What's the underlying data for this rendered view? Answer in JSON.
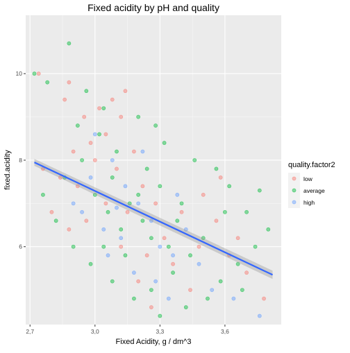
{
  "chart_data": {
    "type": "scatter",
    "title": "Fixed acidity by pH and quality",
    "xlabel": "Fixed Acidity, g / dm^3",
    "ylabel": "fixed.acidity",
    "xlim": [
      2.68,
      3.86
    ],
    "ylim": [
      4.2,
      11.35
    ],
    "x_ticks": [
      2.7,
      3.0,
      3.3,
      3.6
    ],
    "x_tick_labels": [
      "2,7",
      "3,0",
      "3,3",
      "3,6"
    ],
    "y_ticks": [
      6,
      8,
      10
    ],
    "y_tick_labels": [
      "6",
      "8",
      "10"
    ],
    "grid": true,
    "legend": {
      "title": "quality.factor2",
      "placement": "right",
      "items": [
        {
          "name": "low",
          "color": "#F8766D"
        },
        {
          "name": "average",
          "color": "#00BA38"
        },
        {
          "name": "high",
          "color": "#619CFF"
        }
      ]
    },
    "trend_line": {
      "method": "lm",
      "color": "#3366FF",
      "points": [
        {
          "x": 2.72,
          "y": 7.95
        },
        {
          "x": 3.82,
          "y": 5.35
        }
      ]
    },
    "series": [
      {
        "name": "low",
        "color": "#F8766D",
        "points": [
          {
            "x": 2.74,
            "y": 10.0
          },
          {
            "x": 2.86,
            "y": 9.4
          },
          {
            "x": 2.88,
            "y": 9.8
          },
          {
            "x": 2.95,
            "y": 9.0
          },
          {
            "x": 3.02,
            "y": 9.2
          },
          {
            "x": 3.08,
            "y": 9.4
          },
          {
            "x": 3.12,
            "y": 9.0
          },
          {
            "x": 3.05,
            "y": 8.6
          },
          {
            "x": 2.98,
            "y": 8.4
          },
          {
            "x": 2.9,
            "y": 8.2
          },
          {
            "x": 2.84,
            "y": 7.6
          },
          {
            "x": 2.92,
            "y": 7.4
          },
          {
            "x": 3.0,
            "y": 8.0
          },
          {
            "x": 3.1,
            "y": 7.8
          },
          {
            "x": 3.18,
            "y": 8.2
          },
          {
            "x": 3.22,
            "y": 7.4
          },
          {
            "x": 3.28,
            "y": 7.0
          },
          {
            "x": 3.15,
            "y": 6.8
          },
          {
            "x": 3.05,
            "y": 7.0
          },
          {
            "x": 2.96,
            "y": 6.6
          },
          {
            "x": 2.88,
            "y": 6.4
          },
          {
            "x": 3.32,
            "y": 6.2
          },
          {
            "x": 3.4,
            "y": 6.8
          },
          {
            "x": 3.48,
            "y": 6.0
          },
          {
            "x": 3.56,
            "y": 6.6
          },
          {
            "x": 3.62,
            "y": 5.8
          },
          {
            "x": 3.7,
            "y": 5.4
          },
          {
            "x": 3.36,
            "y": 5.6
          },
          {
            "x": 3.24,
            "y": 5.8
          },
          {
            "x": 3.12,
            "y": 6.0
          },
          {
            "x": 3.2,
            "y": 5.2
          },
          {
            "x": 3.44,
            "y": 5.0
          },
          {
            "x": 3.78,
            "y": 4.8
          },
          {
            "x": 2.8,
            "y": 6.8
          },
          {
            "x": 3.58,
            "y": 7.6
          },
          {
            "x": 3.26,
            "y": 4.6
          },
          {
            "x": 3.14,
            "y": 9.6
          },
          {
            "x": 2.76,
            "y": 7.8
          },
          {
            "x": 3.5,
            "y": 7.2
          },
          {
            "x": 3.66,
            "y": 6.2
          }
        ]
      },
      {
        "name": "average",
        "color": "#00BA38",
        "points": [
          {
            "x": 2.88,
            "y": 10.7
          },
          {
            "x": 2.72,
            "y": 10.0
          },
          {
            "x": 2.78,
            "y": 9.8
          },
          {
            "x": 2.96,
            "y": 9.6
          },
          {
            "x": 3.04,
            "y": 9.2
          },
          {
            "x": 3.2,
            "y": 9.0
          },
          {
            "x": 3.28,
            "y": 8.8
          },
          {
            "x": 3.32,
            "y": 8.4
          },
          {
            "x": 3.46,
            "y": 8.0
          },
          {
            "x": 3.56,
            "y": 7.8
          },
          {
            "x": 3.62,
            "y": 7.4
          },
          {
            "x": 3.76,
            "y": 7.3
          },
          {
            "x": 3.7,
            "y": 6.8
          },
          {
            "x": 3.8,
            "y": 6.4
          },
          {
            "x": 3.74,
            "y": 6.0
          },
          {
            "x": 3.66,
            "y": 5.6
          },
          {
            "x": 3.58,
            "y": 5.2
          },
          {
            "x": 3.52,
            "y": 4.8
          },
          {
            "x": 3.42,
            "y": 4.6
          },
          {
            "x": 3.3,
            "y": 4.4
          },
          {
            "x": 3.18,
            "y": 4.8
          },
          {
            "x": 3.08,
            "y": 5.2
          },
          {
            "x": 2.98,
            "y": 5.6
          },
          {
            "x": 2.9,
            "y": 6.0
          },
          {
            "x": 2.82,
            "y": 6.6
          },
          {
            "x": 2.76,
            "y": 7.2
          },
          {
            "x": 2.86,
            "y": 7.6
          },
          {
            "x": 2.94,
            "y": 8.0
          },
          {
            "x": 3.0,
            "y": 7.2
          },
          {
            "x": 3.06,
            "y": 6.8
          },
          {
            "x": 3.12,
            "y": 6.4
          },
          {
            "x": 3.16,
            "y": 7.0
          },
          {
            "x": 3.22,
            "y": 6.6
          },
          {
            "x": 3.26,
            "y": 6.2
          },
          {
            "x": 3.34,
            "y": 6.0
          },
          {
            "x": 3.38,
            "y": 6.6
          },
          {
            "x": 3.44,
            "y": 5.8
          },
          {
            "x": 3.5,
            "y": 6.2
          },
          {
            "x": 3.4,
            "y": 7.0
          },
          {
            "x": 3.3,
            "y": 7.4
          },
          {
            "x": 3.24,
            "y": 7.8
          },
          {
            "x": 3.1,
            "y": 8.2
          },
          {
            "x": 3.02,
            "y": 8.6
          },
          {
            "x": 2.92,
            "y": 8.8
          },
          {
            "x": 3.14,
            "y": 5.8
          },
          {
            "x": 3.04,
            "y": 6.0
          },
          {
            "x": 3.36,
            "y": 5.4
          },
          {
            "x": 3.26,
            "y": 5.0
          },
          {
            "x": 3.6,
            "y": 6.8
          },
          {
            "x": 3.68,
            "y": 5.0
          },
          {
            "x": 3.2,
            "y": 7.2
          },
          {
            "x": 3.08,
            "y": 7.6
          }
        ]
      },
      {
        "name": "high",
        "color": "#619CFF",
        "points": [
          {
            "x": 3.0,
            "y": 8.6
          },
          {
            "x": 3.08,
            "y": 8.0
          },
          {
            "x": 2.98,
            "y": 7.6
          },
          {
            "x": 3.14,
            "y": 7.4
          },
          {
            "x": 3.2,
            "y": 7.0
          },
          {
            "x": 3.26,
            "y": 6.6
          },
          {
            "x": 3.04,
            "y": 6.4
          },
          {
            "x": 3.12,
            "y": 6.2
          },
          {
            "x": 3.3,
            "y": 6.0
          },
          {
            "x": 3.36,
            "y": 5.8
          },
          {
            "x": 3.42,
            "y": 6.4
          },
          {
            "x": 3.48,
            "y": 5.6
          },
          {
            "x": 3.18,
            "y": 5.4
          },
          {
            "x": 3.28,
            "y": 5.2
          },
          {
            "x": 3.54,
            "y": 5.0
          },
          {
            "x": 3.64,
            "y": 4.8
          },
          {
            "x": 2.94,
            "y": 6.8
          },
          {
            "x": 3.22,
            "y": 8.2
          },
          {
            "x": 3.38,
            "y": 7.2
          },
          {
            "x": 3.06,
            "y": 5.8
          },
          {
            "x": 3.76,
            "y": 4.4
          },
          {
            "x": 3.34,
            "y": 4.8
          },
          {
            "x": 3.1,
            "y": 6.9
          },
          {
            "x": 2.9,
            "y": 7.0
          }
        ]
      }
    ]
  }
}
